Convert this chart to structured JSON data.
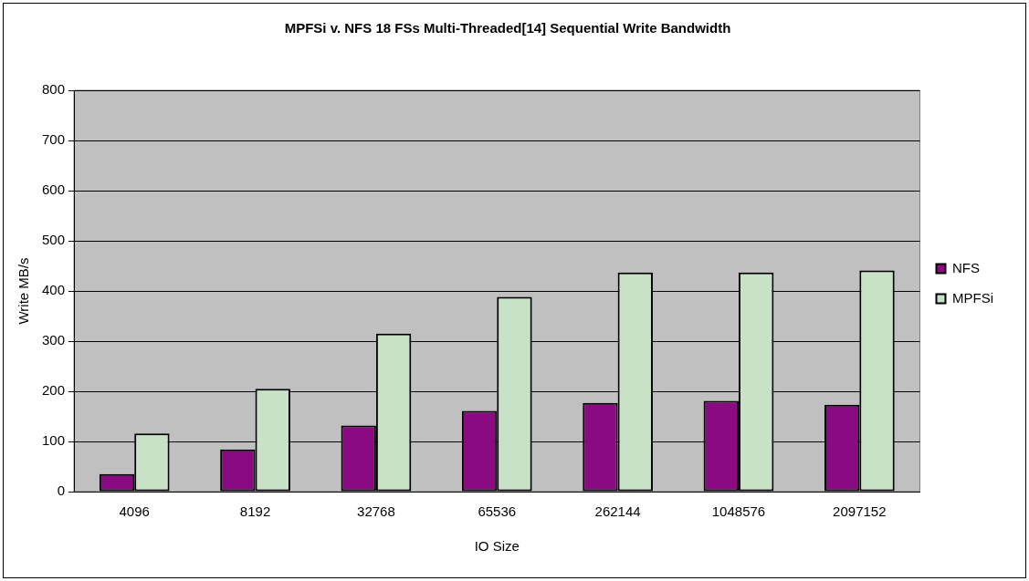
{
  "chart_data": {
    "type": "bar",
    "title": "MPFSi v. NFS 18 FSs Multi-Threaded[14] Sequential Write Bandwidth",
    "xlabel": "IO Size",
    "ylabel": "Write MB/s",
    "categories": [
      "4096",
      "8192",
      "32768",
      "65536",
      "262144",
      "1048576",
      "2097152"
    ],
    "series": [
      {
        "name": "NFS",
        "color": "#8a0a82",
        "values": [
          35,
          84,
          132,
          161,
          177,
          181,
          173
        ]
      },
      {
        "name": "MPFSi",
        "color": "#c8e2c8",
        "values": [
          116,
          205,
          315,
          388,
          437,
          437,
          441
        ]
      }
    ],
    "ylim": [
      0,
      800
    ],
    "yticks": [
      0,
      100,
      200,
      300,
      400,
      500,
      600,
      700,
      800
    ],
    "grid": "y",
    "legend": "right"
  }
}
